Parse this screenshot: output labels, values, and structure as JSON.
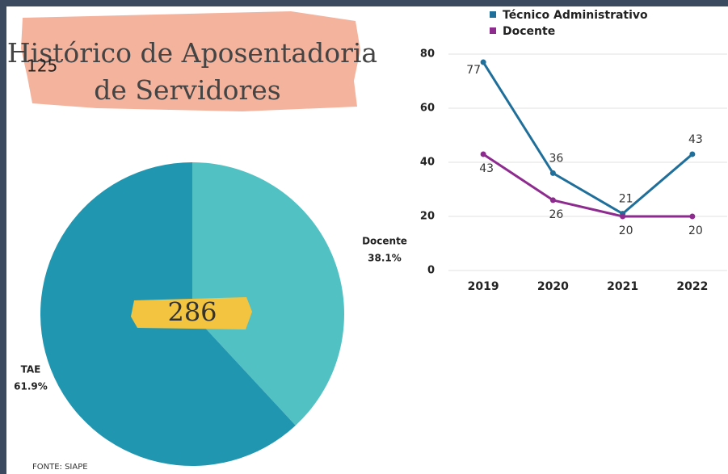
{
  "page": {
    "title_lines": [
      "Histórico de Aposentadoria",
      "de Servidores"
    ],
    "page_number": "125",
    "source": "FONTE: SIAPE"
  },
  "chart_data": [
    {
      "type": "pie",
      "categories": [
        "Docente",
        "TAE"
      ],
      "values": [
        38.1,
        61.9
      ],
      "value_labels": [
        "38.1%",
        "61.9%"
      ],
      "colors": [
        "#52c1c3",
        "#2196b0"
      ],
      "total": 286
    },
    {
      "type": "line",
      "categories": [
        "2019",
        "2020",
        "2021",
        "2022"
      ],
      "series": [
        {
          "name": "Técnico Administrativo",
          "color": "#1f6f9a",
          "values": [
            77,
            36,
            21,
            43
          ]
        },
        {
          "name": "Docente",
          "color": "#8e2b8f",
          "values": [
            43,
            26,
            20,
            20
          ]
        }
      ],
      "ylim": [
        0,
        80
      ],
      "yticks": [
        0,
        20,
        40,
        60,
        80
      ],
      "grid": true
    }
  ]
}
